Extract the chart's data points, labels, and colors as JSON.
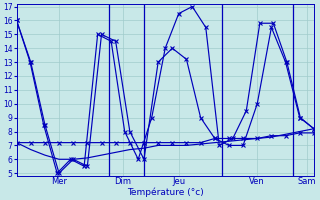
{
  "xlabel": "Température (°c)",
  "bg_color": "#c8e8e8",
  "grid_color": "#a0cccc",
  "lc": "#0000bb",
  "ylim": [
    5,
    17
  ],
  "yticks": [
    5,
    6,
    7,
    8,
    9,
    10,
    11,
    12,
    13,
    14,
    15,
    16,
    17
  ],
  "xlim": [
    0,
    21
  ],
  "vlines": [
    6.5,
    9.0,
    14.5,
    19.5
  ],
  "day_ticks": [
    3.0,
    7.5,
    11.5,
    17.0,
    20.5
  ],
  "day_labels": [
    "Mer",
    "Dim",
    "Jeu",
    "Ven",
    "Sam"
  ],
  "series": [
    [
      16,
      13,
      8.5,
      5,
      6,
      5.5,
      15,
      14.5,
      8,
      6.0,
      9.0,
      14,
      16.5,
      17,
      15.5,
      7.0,
      7.5,
      9.5,
      15.8,
      15.8,
      13,
      9,
      8.2
    ],
    [
      16,
      13,
      8.5,
      5,
      6,
      5.5,
      15,
      14.5,
      8,
      6.0,
      13,
      14,
      13.2,
      9,
      7.5,
      7.0,
      7.0,
      10,
      15.5,
      13,
      9,
      8.2
    ],
    [
      7.2,
      7.2,
      7.2,
      7.2,
      7.2,
      7.2,
      7.2,
      7.2,
      7.2,
      7.2,
      7.2,
      7.2,
      7.2,
      7.2,
      7.5,
      7.5,
      7.5,
      7.5,
      7.7,
      7.7,
      7.9,
      7.9
    ],
    [
      7.2,
      6.7,
      6.3,
      6.0,
      6.0,
      6.1,
      6.3,
      6.5,
      6.7,
      6.8,
      7.0,
      7.0,
      7.0,
      7.1,
      7.2,
      7.3,
      7.4,
      7.5,
      7.6,
      7.8,
      8.0,
      8.2
    ]
  ],
  "markers": [
    "x",
    "x",
    "x",
    null
  ]
}
